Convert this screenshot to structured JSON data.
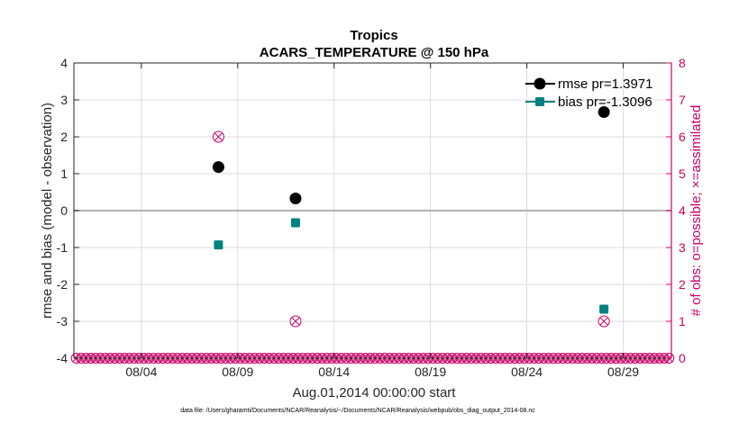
{
  "chart_data": {
    "type": "scatter",
    "title": "Tropics",
    "subtitle": "ACARS_TEMPERATURE @ 150 hPa",
    "xlabel": "Aug.01,2014 00:00:00 start",
    "ylabel": "rmse and bias (model - observation)",
    "y2label": "# of obs: o=possible; ×=assimilated",
    "footnote": "data file: /Users/gharamti/Documents/NCAR/Reanalysis/~/Documents/NCAR/Reanalysis/webpub/obs_diag_output_2014-08.nc",
    "xlim": [
      0,
      31
    ],
    "ylim": [
      -4,
      4
    ],
    "y2lim": [
      0,
      8
    ],
    "grid": true,
    "legend_position": "top-right",
    "x_ticks": [
      {
        "value": 3.5,
        "label": "08/04"
      },
      {
        "value": 8.5,
        "label": "08/09"
      },
      {
        "value": 13.5,
        "label": "08/14"
      },
      {
        "value": 18.5,
        "label": "08/19"
      },
      {
        "value": 23.5,
        "label": "08/24"
      },
      {
        "value": 28.5,
        "label": "08/29"
      }
    ],
    "y_ticks": [
      {
        "value": 4,
        "label": "4"
      },
      {
        "value": 3,
        "label": "3"
      },
      {
        "value": 2,
        "label": "2"
      },
      {
        "value": 1,
        "label": "1"
      },
      {
        "value": 0,
        "label": "0"
      },
      {
        "value": -1,
        "label": "-1"
      },
      {
        "value": -2,
        "label": "-2"
      },
      {
        "value": -3,
        "label": "-3"
      },
      {
        "value": -4,
        "label": "-4"
      }
    ],
    "y2_ticks": [
      {
        "value": 8,
        "label": "8"
      },
      {
        "value": 7,
        "label": "7"
      },
      {
        "value": 6,
        "label": "6"
      },
      {
        "value": 5,
        "label": "5"
      },
      {
        "value": 4,
        "label": "4"
      },
      {
        "value": 3,
        "label": "3"
      },
      {
        "value": 2,
        "label": "2"
      },
      {
        "value": 1,
        "label": "1"
      },
      {
        "value": 0,
        "label": "0"
      }
    ],
    "series": [
      {
        "name": "rmse",
        "legend": "rmse pr=1.3971",
        "color": "#000000",
        "marker": "circle",
        "points": [
          {
            "x": 7.5,
            "y": 1.18
          },
          {
            "x": 11.5,
            "y": 0.33
          },
          {
            "x": 27.5,
            "y": 2.67
          }
        ]
      },
      {
        "name": "bias",
        "legend": "bias pr=-1.3096",
        "color": "#008080",
        "marker": "square",
        "points": [
          {
            "x": 7.5,
            "y": -0.93
          },
          {
            "x": 11.5,
            "y": -0.33
          },
          {
            "x": 27.5,
            "y": -2.67
          }
        ]
      },
      {
        "name": "obs_possible",
        "legend": "",
        "color": "#cc0066",
        "marker": "circle-open",
        "axis": "right",
        "points": [
          {
            "x": 7.5,
            "y": 6
          },
          {
            "x": 11.5,
            "y": 1
          },
          {
            "x": 27.5,
            "y": 1
          }
        ]
      },
      {
        "name": "obs_assimilated",
        "legend": "",
        "color": "#cc0066",
        "marker": "x",
        "axis": "right",
        "points": [
          {
            "x": 7.5,
            "y": 6
          },
          {
            "x": 11.5,
            "y": 1
          },
          {
            "x": 27.5,
            "y": 1
          }
        ]
      }
    ],
    "zero_count_baseline": {
      "x_start": 0.125,
      "x_step": 0.25,
      "count": 124,
      "value": 0
    }
  },
  "colors": {
    "axis": "#262626",
    "grid": "#dcdcdc",
    "zero_line": "#b3b3b3",
    "right_axis": "#cc0066",
    "rmse": "#000000",
    "bias": "#008080"
  }
}
